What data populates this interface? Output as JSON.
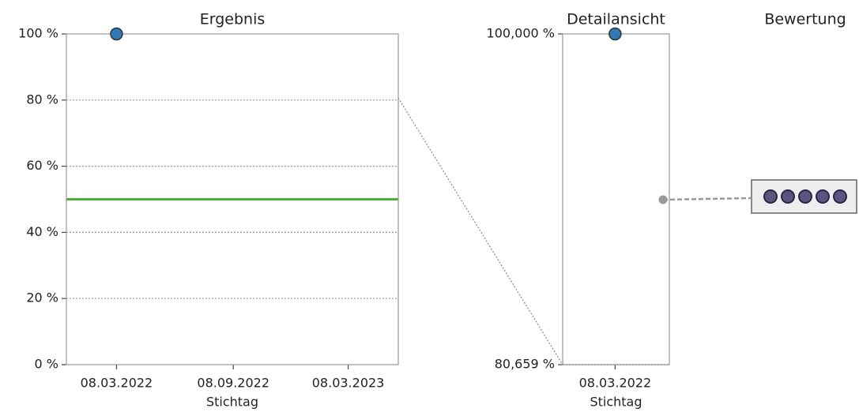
{
  "chart_data": [
    {
      "type": "scatter",
      "title": "Ergebnis",
      "xlabel": "Stichtag",
      "x": [
        "08.03.2022"
      ],
      "series": [
        {
          "values": [
            100
          ],
          "color": "#2f7ab5"
        }
      ],
      "hlines": [
        {
          "value": 50,
          "color": "#4daf3a"
        }
      ],
      "xlim": [
        "19.12.2021",
        "26.05.2023"
      ],
      "xticks": [
        "08.03.2022",
        "08.09.2022",
        "08.03.2023"
      ],
      "ylim": [
        0,
        100
      ],
      "yticks": [
        {
          "value": 0,
          "label": "0 %"
        },
        {
          "value": 20,
          "label": "20 %"
        },
        {
          "value": 40,
          "label": "40 %"
        },
        {
          "value": 60,
          "label": "60 %"
        },
        {
          "value": 80,
          "label": "80 %"
        },
        {
          "value": 100,
          "label": "100 %"
        }
      ],
      "grid": true
    },
    {
      "type": "scatter",
      "title": "Detailansicht",
      "xlabel": "Stichtag",
      "x": [
        "08.03.2022"
      ],
      "series": [
        {
          "values": [
            100
          ],
          "color": "#2f7ab5"
        }
      ],
      "xlim": [
        "06.02.2022",
        "08.04.2022"
      ],
      "xticks": [
        "08.03.2022"
      ],
      "ylim": [
        80.659,
        100
      ],
      "yticks": [
        {
          "value": 80.659,
          "label": "80,659 %"
        },
        {
          "value": 100,
          "label": "100,000 %"
        }
      ],
      "grid": false
    }
  ],
  "bewertung": {
    "title": "Bewertung",
    "count": 5
  }
}
